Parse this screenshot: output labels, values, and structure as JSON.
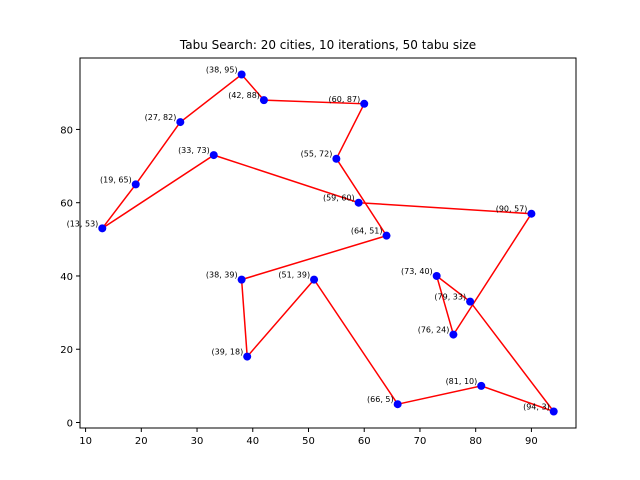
{
  "chart_data": {
    "type": "line",
    "title": "Tabu Search: 20 cities, 10 iterations, 50 tabu size",
    "xlabel": "",
    "ylabel": "",
    "xlim": [
      9,
      98
    ],
    "ylim": [
      -1.5,
      99.5
    ],
    "xticks": [
      10,
      20,
      30,
      40,
      50,
      60,
      70,
      80,
      90
    ],
    "yticks": [
      0,
      20,
      40,
      60,
      80
    ],
    "grid": false,
    "line_color": "#ff0000",
    "marker_color": "#0000ff",
    "tour": [
      {
        "x": 13,
        "y": 53,
        "label": "(13, 53)"
      },
      {
        "x": 19,
        "y": 65,
        "label": "(19, 65)"
      },
      {
        "x": 27,
        "y": 82,
        "label": "(27, 82)"
      },
      {
        "x": 38,
        "y": 95,
        "label": "(38, 95)"
      },
      {
        "x": 42,
        "y": 88,
        "label": "(42, 88)"
      },
      {
        "x": 60,
        "y": 87,
        "label": "(60, 87)"
      },
      {
        "x": 55,
        "y": 72,
        "label": "(55, 72)"
      },
      {
        "x": 64,
        "y": 51,
        "label": "(64, 51)"
      },
      {
        "x": 38,
        "y": 39,
        "label": "(38, 39)"
      },
      {
        "x": 39,
        "y": 18,
        "label": "(39, 18)"
      },
      {
        "x": 51,
        "y": 39,
        "label": "(51, 39)"
      },
      {
        "x": 66,
        "y": 5,
        "label": "(66, 5)"
      },
      {
        "x": 81,
        "y": 10,
        "label": "(81, 10)"
      },
      {
        "x": 94,
        "y": 3,
        "label": "(94, 3)"
      },
      {
        "x": 79,
        "y": 33,
        "label": "(79, 33)"
      },
      {
        "x": 73,
        "y": 40,
        "label": "(73, 40)"
      },
      {
        "x": 76,
        "y": 24,
        "label": "(76, 24)"
      },
      {
        "x": 90,
        "y": 57,
        "label": "(90, 57)"
      },
      {
        "x": 59,
        "y": 60,
        "label": "(59, 60)"
      },
      {
        "x": 33,
        "y": 73,
        "label": "(33, 73)"
      },
      {
        "x": 13,
        "y": 53,
        "label": "(13, 53)"
      }
    ]
  }
}
